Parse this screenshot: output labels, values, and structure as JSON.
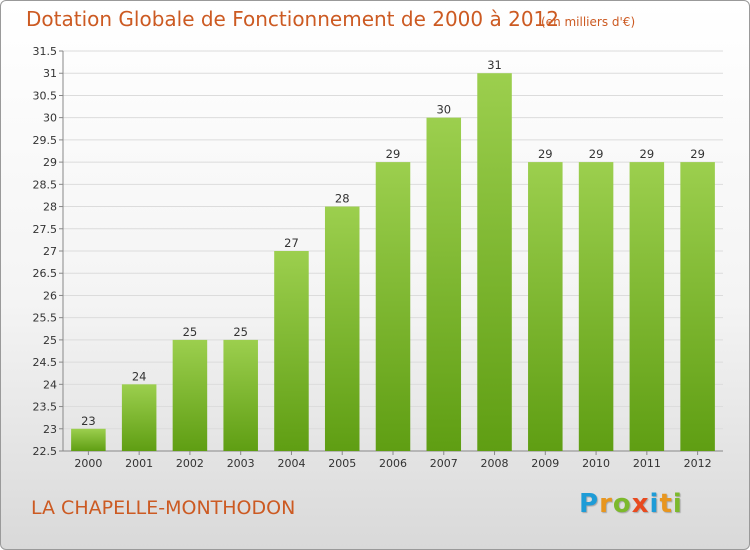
{
  "header": {
    "title": "Dotation Globale de Fonctionnement de 2000 à 2012",
    "subtitle": "(en milliers d'€)"
  },
  "footer": {
    "commune": "LA CHAPELLE-MONTHODON",
    "logo_letters": [
      "P",
      "r",
      "o",
      "x",
      "i",
      "t",
      "i"
    ],
    "logo_colors": [
      "#1e9cd7",
      "#e8961e",
      "#7cb92c",
      "#e84a1f",
      "#1e9cd7",
      "#e8961e",
      "#7cb92c"
    ]
  },
  "colors": {
    "title": "#cc5a22",
    "bar_top": "#9ccf4e",
    "bar_bottom": "#5f9e13",
    "grid": "#dcdcdc",
    "axis": "#888888"
  },
  "chart_data": {
    "type": "bar",
    "title": "Dotation Globale de Fonctionnement de 2000 à 2012",
    "subtitle": "(en milliers d'€)",
    "categories": [
      "2000",
      "2001",
      "2002",
      "2003",
      "2004",
      "2005",
      "2006",
      "2007",
      "2008",
      "2009",
      "2010",
      "2011",
      "2012"
    ],
    "values": [
      23,
      24,
      25,
      25,
      27,
      28,
      29,
      30,
      31,
      29,
      29,
      29,
      29
    ],
    "ylim": [
      22.5,
      31.5
    ],
    "yticks": [
      "22.5",
      "23",
      "23.5",
      "24",
      "24.5",
      "25",
      "25.5",
      "26",
      "26.5",
      "27",
      "27.5",
      "28",
      "28.5",
      "29",
      "29.5",
      "30",
      "30.5",
      "31",
      "31.5"
    ],
    "grid": true,
    "legend": "none"
  }
}
